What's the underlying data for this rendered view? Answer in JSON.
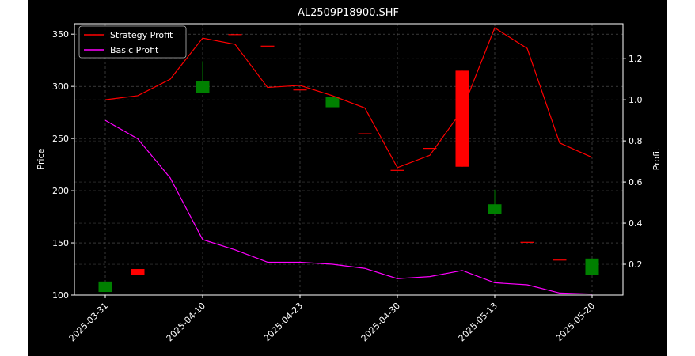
{
  "chart_data": {
    "type": "candlestick+line",
    "title": "AL2509P18900.SHF",
    "ylabel_left": "Price",
    "ylabel_right": "Profit",
    "grid": true,
    "legend_position": "top-left",
    "y_left": {
      "min": 100,
      "max": 360,
      "ticks": [
        100,
        150,
        200,
        250,
        300,
        350
      ]
    },
    "y_right": {
      "min": 0.05,
      "max": 1.37,
      "ticks": [
        0.2,
        0.4,
        0.6,
        0.8,
        1.0,
        1.2
      ]
    },
    "x_tick_labels": [
      {
        "index": 0,
        "label": "2025-03-31"
      },
      {
        "index": 3,
        "label": "2025-04-10"
      },
      {
        "index": 6,
        "label": "2025-04-23"
      },
      {
        "index": 9,
        "label": "2025-04-30"
      },
      {
        "index": 12,
        "label": "2025-05-13"
      },
      {
        "index": 15,
        "label": "2025-05-20"
      }
    ],
    "candles": [
      {
        "index": 0,
        "open": 103,
        "close": 113,
        "high": 113,
        "low": 103,
        "color": "#008000"
      },
      {
        "index": 1,
        "open": 125,
        "close": 119,
        "high": 125,
        "low": 119,
        "color": "#ff0000"
      },
      {
        "index": 3,
        "open": 294,
        "close": 305,
        "high": 324,
        "low": 294,
        "color": "#008000"
      },
      {
        "index": 4,
        "open": 350,
        "close": 350,
        "high": 350,
        "low": 350,
        "color": "#ff0000"
      },
      {
        "index": 5,
        "open": 339,
        "close": 339,
        "high": 339,
        "low": 339,
        "color": "#ff0000"
      },
      {
        "index": 6,
        "open": 297,
        "close": 297,
        "high": 297,
        "low": 297,
        "color": "#ff0000"
      },
      {
        "index": 7,
        "open": 280,
        "close": 290,
        "high": 290,
        "low": 280,
        "color": "#008000"
      },
      {
        "index": 8,
        "open": 255,
        "close": 255,
        "high": 255,
        "low": 255,
        "color": "#ff0000"
      },
      {
        "index": 9,
        "open": 220,
        "close": 220,
        "high": 220,
        "low": 220,
        "color": "#ff0000"
      },
      {
        "index": 10,
        "open": 241,
        "close": 241,
        "high": 241,
        "low": 241,
        "color": "#ff0000"
      },
      {
        "index": 11,
        "open": 315,
        "close": 223,
        "high": 315,
        "low": 223,
        "color": "#ff0000"
      },
      {
        "index": 12,
        "open": 178,
        "close": 187,
        "high": 201,
        "low": 178,
        "color": "#008000"
      },
      {
        "index": 13,
        "open": 151,
        "close": 151,
        "high": 151,
        "low": 151,
        "color": "#ff0000"
      },
      {
        "index": 14,
        "open": 134,
        "close": 134,
        "high": 134,
        "low": 134,
        "color": "#ff0000"
      },
      {
        "index": 15,
        "open": 119,
        "close": 135,
        "high": 135,
        "low": 119,
        "color": "#008000"
      }
    ],
    "series": [
      {
        "name": "Strategy Profit",
        "axis": "right",
        "color": "#ff0000",
        "values": [
          1.0,
          1.02,
          1.1,
          1.3,
          1.27,
          1.06,
          1.07,
          1.02,
          0.96,
          0.67,
          0.73,
          0.95,
          1.35,
          1.25,
          0.79,
          0.72
        ]
      },
      {
        "name": "Basic Profit",
        "axis": "right",
        "color": "#ff00ff",
        "values": [
          0.9,
          0.81,
          0.62,
          0.32,
          0.27,
          0.21,
          0.21,
          0.2,
          0.18,
          0.13,
          0.14,
          0.17,
          0.11,
          0.1,
          0.06,
          0.055
        ]
      }
    ]
  }
}
